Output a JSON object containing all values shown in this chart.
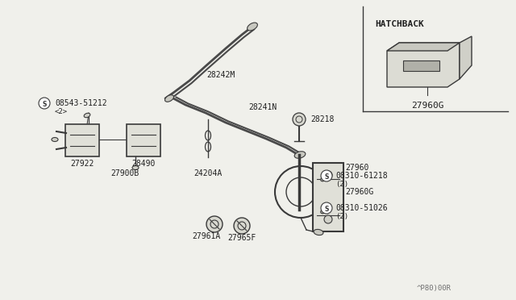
{
  "bg_color": "#f0f0eb",
  "fig_width": 6.4,
  "fig_height": 3.72,
  "dpi": 100,
  "inset_label": "HATCHBACK",
  "inset_part": "27960G",
  "watermark": "^P80)00R",
  "line_color": "#3a3a3a",
  "text_color": "#202020",
  "cable_color": "#4a4a4a",
  "label_fontsize": 7.0,
  "sub_fontsize": 6.5
}
